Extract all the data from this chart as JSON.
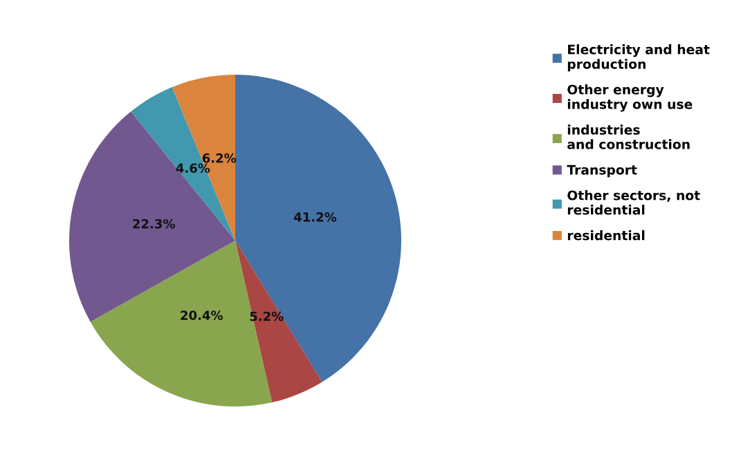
{
  "chart_data": {
    "type": "pie",
    "categories": [
      "Electricity and heat\nproduction",
      "Other energy\nindustry own use",
      "industries\nand construction",
      "Transport",
      "Other sectors, not\nresidential",
      "residential"
    ],
    "values": [
      41.2,
      5.2,
      20.4,
      22.3,
      4.6,
      6.2
    ],
    "value_labels": [
      "41.2%",
      "5.2%",
      "20.4%",
      "22.3%",
      "4.6%",
      "6.2%"
    ],
    "colors": [
      "#4572a7",
      "#aa4643",
      "#89a54e",
      "#71588f",
      "#4198af",
      "#db843d"
    ],
    "legend": "right"
  }
}
